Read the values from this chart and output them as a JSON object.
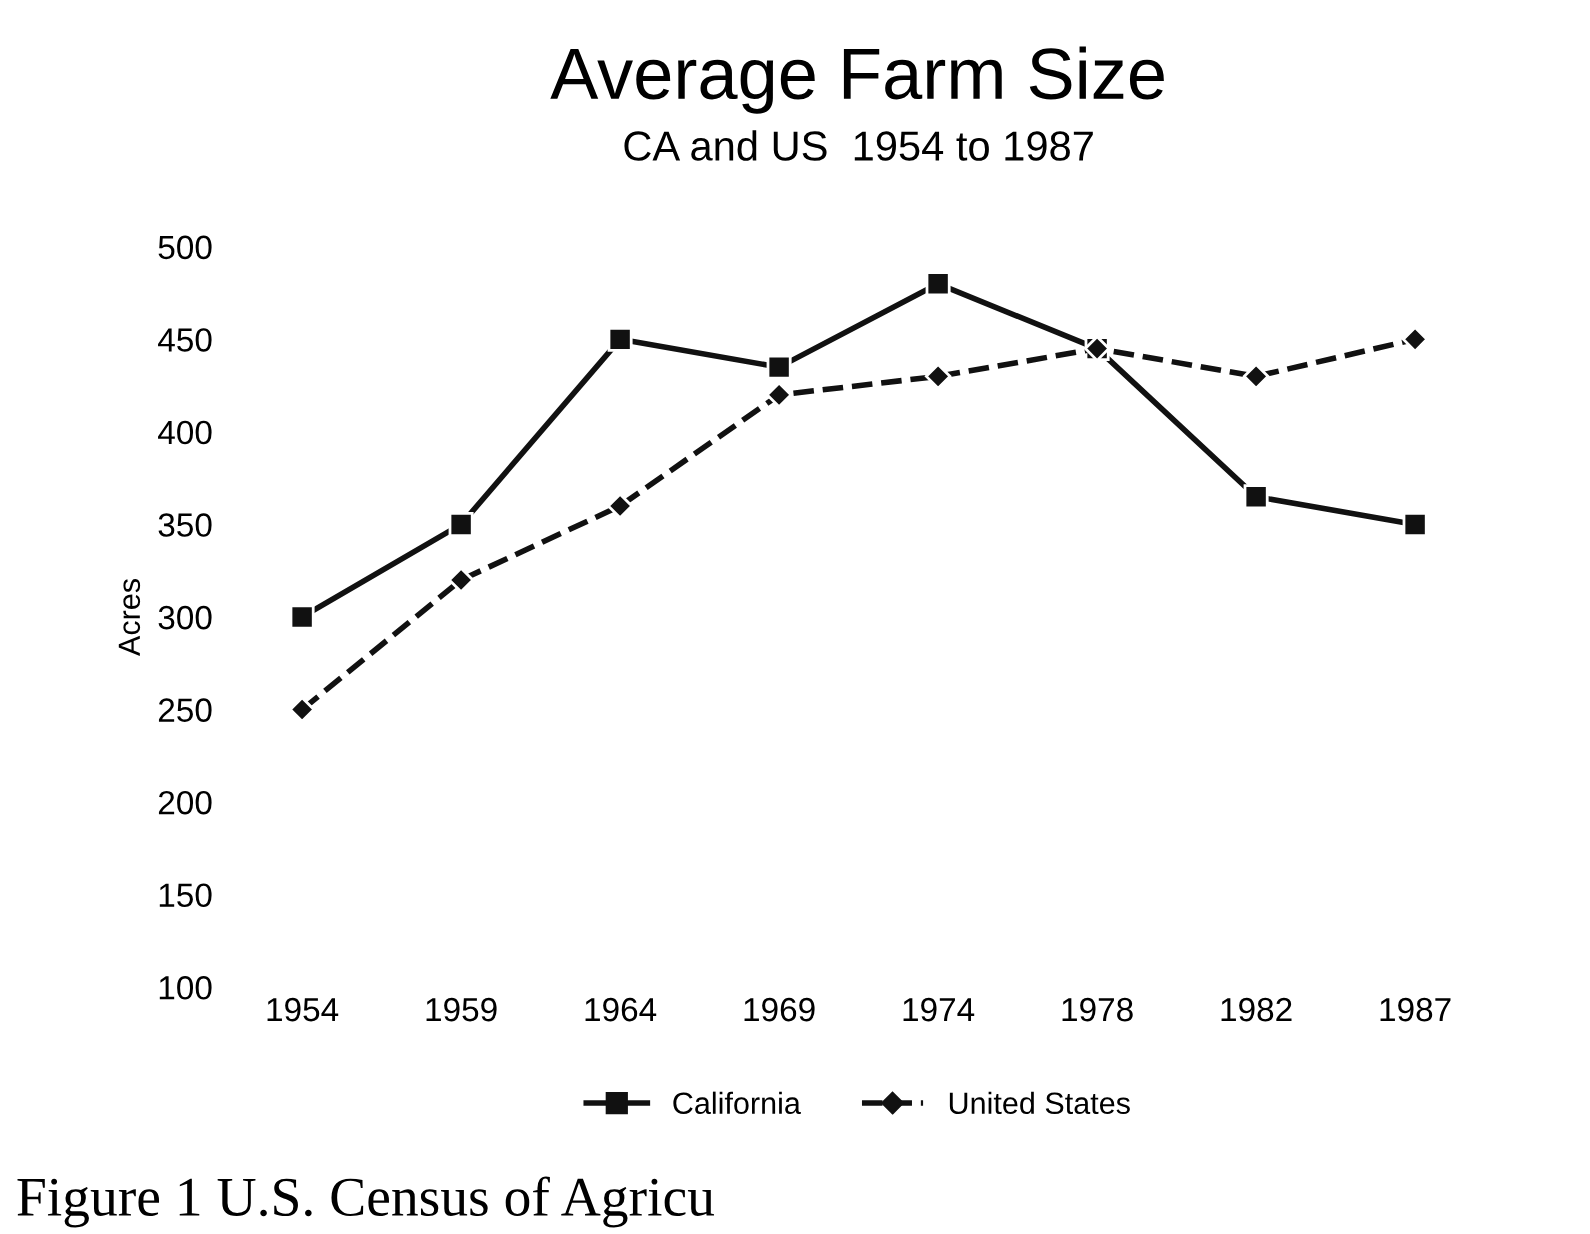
{
  "chart_data": {
    "type": "line",
    "title": "Average Farm Size",
    "subtitle": "CA and US  1954 to 1987",
    "ylabel": "Acres",
    "categories": [
      "1954",
      "1959",
      "1964",
      "1969",
      "1974",
      "1978",
      "1982",
      "1987"
    ],
    "series": [
      {
        "name": "California",
        "color": "#111111",
        "marker": "square",
        "line_style": "solid",
        "values": [
          300,
          350,
          450,
          435,
          480,
          445,
          365,
          350
        ]
      },
      {
        "name": "United States",
        "color": "#111111",
        "marker": "diamond",
        "line_style": "dashed",
        "values": [
          250,
          320,
          360,
          420,
          430,
          445,
          430,
          450
        ]
      }
    ],
    "ylim": [
      100,
      500
    ],
    "yticks": [
      100,
      150,
      200,
      250,
      300,
      350,
      400,
      450,
      500
    ],
    "grid": false,
    "legend": "bottom",
    "annotations": [
      "Figure 1 U.S. Census of Agricu"
    ]
  }
}
